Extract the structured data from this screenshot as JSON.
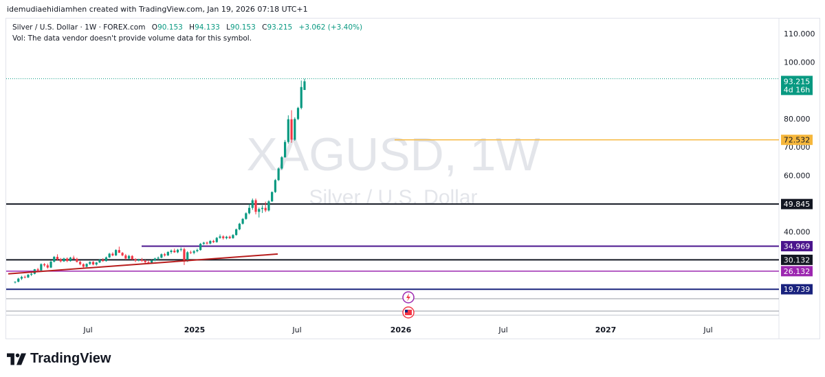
{
  "header": {
    "attribution": "idemudiaehidiamhen created with TradingView.com, Jan 19, 2026 07:18 UTC+1"
  },
  "legend": {
    "symbol": "Silver / U.S. Dollar · 1W · FOREX.com",
    "open_label": "O",
    "open": "90.153",
    "high_label": "H",
    "high": "94.133",
    "low_label": "L",
    "low": "90.153",
    "close_label": "C",
    "close": "93.215",
    "change": "+3.062 (+3.40%)",
    "vol_note": "Vol: The data vendor doesn't provide volume data for this symbol."
  },
  "watermark": {
    "main": "XAGUSD, 1W",
    "sub": "Silver / U.S. Dollar"
  },
  "brand": {
    "name": "TradingView"
  },
  "colors": {
    "up": "#089981",
    "down": "#f23645",
    "orange": "#f6b73c",
    "purple_dark": "#4a148c",
    "purple": "#9c27b0",
    "navy": "#1a237e",
    "dark": "#131722"
  },
  "chart_data": {
    "type": "candlestick",
    "ylim": [
      13,
      112
    ],
    "yticks": [
      "110.000",
      "100.000",
      "80.000",
      "70.000",
      "60.000",
      "40.000"
    ],
    "xticks": [
      "Jul",
      "2025",
      "Jul",
      "2026",
      "Jul",
      "2027",
      "Jul"
    ],
    "current_price": "93.215",
    "countdown": "4d 16h",
    "horizontal_levels": [
      {
        "value": 72.532,
        "label": "72.532",
        "color": "orange"
      },
      {
        "value": 49.845,
        "label": "49.845",
        "color": "dark"
      },
      {
        "value": 34.969,
        "label": "34.969",
        "color": "purple_dark"
      },
      {
        "value": 30.132,
        "label": "30.132",
        "color": "dark"
      },
      {
        "value": 26.132,
        "label": "26.132",
        "color": "purple"
      },
      {
        "value": 19.739,
        "label": "19.739",
        "color": "navy"
      }
    ],
    "trendline": {
      "from": [
        "2024-03",
        25.2
      ],
      "to": [
        "2025-06",
        32.2
      ]
    },
    "candles": [
      [
        22.2,
        22.5,
        21.8,
        22.4
      ],
      [
        22.4,
        23.8,
        22.2,
        23.5
      ],
      [
        23.5,
        24.5,
        23.0,
        24.1
      ],
      [
        24.1,
        24.6,
        23.6,
        23.9
      ],
      [
        23.9,
        25.1,
        23.7,
        24.9
      ],
      [
        24.9,
        25.6,
        24.4,
        25.2
      ],
      [
        25.2,
        26.9,
        25.0,
        26.8
      ],
      [
        26.8,
        27.3,
        26.0,
        26.4
      ],
      [
        26.4,
        28.9,
        26.2,
        28.6
      ],
      [
        28.6,
        29.0,
        27.7,
        28.2
      ],
      [
        28.2,
        28.8,
        27.0,
        27.4
      ],
      [
        27.4,
        29.9,
        27.2,
        29.5
      ],
      [
        29.5,
        31.5,
        29.2,
        31.2
      ],
      [
        31.2,
        32.1,
        29.8,
        30.3
      ],
      [
        30.3,
        30.8,
        29.2,
        29.6
      ],
      [
        29.6,
        30.9,
        29.4,
        30.6
      ],
      [
        30.6,
        31.0,
        29.3,
        29.7
      ],
      [
        29.7,
        31.2,
        29.5,
        30.9
      ],
      [
        30.9,
        31.6,
        30.4,
        30.5
      ],
      [
        30.5,
        30.9,
        29.2,
        29.4
      ],
      [
        29.4,
        29.8,
        28.2,
        28.6
      ],
      [
        28.6,
        28.9,
        27.4,
        27.7
      ],
      [
        27.7,
        28.9,
        27.5,
        28.7
      ],
      [
        28.7,
        29.6,
        28.3,
        29.4
      ],
      [
        29.4,
        29.7,
        28.2,
        28.5
      ],
      [
        28.5,
        29.4,
        28.1,
        29.2
      ],
      [
        29.2,
        30.4,
        29.0,
        30.1
      ],
      [
        30.1,
        30.7,
        29.4,
        29.7
      ],
      [
        29.7,
        31.3,
        29.5,
        31.0
      ],
      [
        31.0,
        32.6,
        30.8,
        32.3
      ],
      [
        32.3,
        32.8,
        31.4,
        31.7
      ],
      [
        31.7,
        33.9,
        31.5,
        33.6
      ],
      [
        33.6,
        34.8,
        33.2,
        32.6
      ],
      [
        32.6,
        32.9,
        31.4,
        31.7
      ],
      [
        31.7,
        32.2,
        30.2,
        30.6
      ],
      [
        30.6,
        31.9,
        30.4,
        31.5
      ],
      [
        31.5,
        31.8,
        30.1,
        30.3
      ],
      [
        30.3,
        30.7,
        29.3,
        29.9
      ],
      [
        29.9,
        30.5,
        29.6,
        30.2
      ],
      [
        30.2,
        30.8,
        29.4,
        29.8
      ],
      [
        29.8,
        30.2,
        29.0,
        29.3
      ],
      [
        29.3,
        29.8,
        28.6,
        29.1
      ],
      [
        29.1,
        30.2,
        28.9,
        29.9
      ],
      [
        29.9,
        30.9,
        29.6,
        30.6
      ],
      [
        30.6,
        31.3,
        30.1,
        30.9
      ],
      [
        30.9,
        32.4,
        30.7,
        32.1
      ],
      [
        32.1,
        32.6,
        31.3,
        31.7
      ],
      [
        31.7,
        33.2,
        31.5,
        32.9
      ],
      [
        32.9,
        33.8,
        32.3,
        33.4
      ],
      [
        33.4,
        34.1,
        32.6,
        32.8
      ],
      [
        32.8,
        34.0,
        32.5,
        33.7
      ],
      [
        33.7,
        34.5,
        33.1,
        33.9
      ],
      [
        33.9,
        34.4,
        28.3,
        29.6
      ],
      [
        29.6,
        33.2,
        29.4,
        32.8
      ],
      [
        32.8,
        33.4,
        32.2,
        32.6
      ],
      [
        32.6,
        33.6,
        32.1,
        33.2
      ],
      [
        33.2,
        34.1,
        32.8,
        33.6
      ],
      [
        33.6,
        36.1,
        33.4,
        35.8
      ],
      [
        35.8,
        36.5,
        35.4,
        36.2
      ],
      [
        36.2,
        36.6,
        35.5,
        35.9
      ],
      [
        35.9,
        37.1,
        35.6,
        36.8
      ],
      [
        36.8,
        37.2,
        36.1,
        36.4
      ],
      [
        36.4,
        38.2,
        36.2,
        37.9
      ],
      [
        37.9,
        39.1,
        37.6,
        38.4
      ],
      [
        38.4,
        38.8,
        37.3,
        37.8
      ],
      [
        37.8,
        38.6,
        37.4,
        38.3
      ],
      [
        38.3,
        38.7,
        37.5,
        37.8
      ],
      [
        37.8,
        39.2,
        37.6,
        38.9
      ],
      [
        38.9,
        41.2,
        38.7,
        40.9
      ],
      [
        40.9,
        43.2,
        40.6,
        42.9
      ],
      [
        42.9,
        44.9,
        42.6,
        44.6
      ],
      [
        44.6,
        46.9,
        44.3,
        46.6
      ],
      [
        46.6,
        49.8,
        46.2,
        48.5
      ],
      [
        48.5,
        51.8,
        47.8,
        51.2
      ],
      [
        51.2,
        51.8,
        46.2,
        47.1
      ],
      [
        47.1,
        48.6,
        45.1,
        48.1
      ],
      [
        48.1,
        49.4,
        46.7,
        48.5
      ],
      [
        48.5,
        50.7,
        47.0,
        47.6
      ],
      [
        47.6,
        51.2,
        47.2,
        50.8
      ],
      [
        50.8,
        54.3,
        50.6,
        54.1
      ],
      [
        54.1,
        58.7,
        53.8,
        58.3
      ],
      [
        58.3,
        62.8,
        58.0,
        62.4
      ],
      [
        62.4,
        66.8,
        62.0,
        66.4
      ],
      [
        66.4,
        72.5,
        66.2,
        71.8
      ],
      [
        71.8,
        81.2,
        71.2,
        79.8
      ],
      [
        79.8,
        83.0,
        71.5,
        72.6
      ],
      [
        72.6,
        80.5,
        72.2,
        79.9
      ],
      [
        79.9,
        84.2,
        79.5,
        83.8
      ],
      [
        83.8,
        93.5,
        83.3,
        91.2
      ],
      [
        90.153,
        94.133,
        90.153,
        93.215
      ]
    ]
  }
}
